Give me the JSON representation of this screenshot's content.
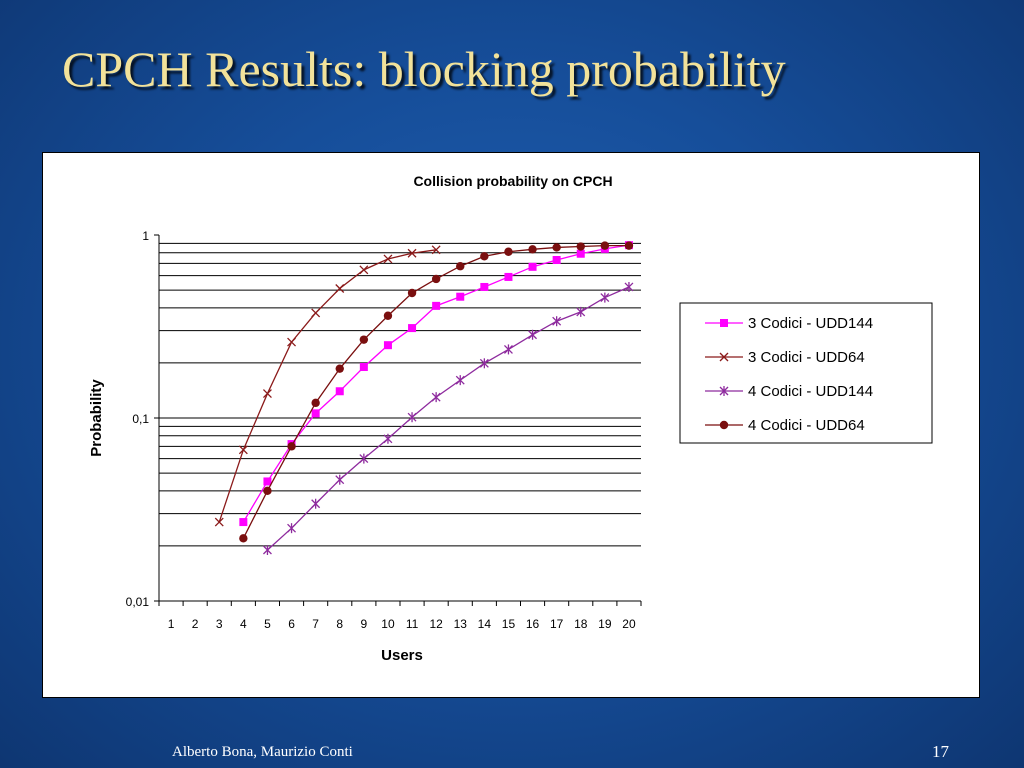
{
  "slide": {
    "title": "CPCH Results: blocking probability",
    "author": "Alberto Bona, Maurizio Conti",
    "page_number": "17"
  },
  "chart_data": {
    "type": "line",
    "title": "Collision probability on CPCH",
    "xlabel": "Users",
    "ylabel": "Probability",
    "yscale": "log",
    "ylim": [
      0.01,
      1
    ],
    "ytick_labels": [
      "0,01",
      "0,1",
      "1"
    ],
    "categories": [
      "1",
      "2",
      "3",
      "4",
      "5",
      "6",
      "7",
      "8",
      "9",
      "10",
      "11",
      "12",
      "13",
      "14",
      "15",
      "16",
      "17",
      "18",
      "19",
      "20"
    ],
    "grid": true,
    "legend_position": "right",
    "series": [
      {
        "name": "3 Codici - UDD144",
        "color": "#ff00ff",
        "marker": "square",
        "values": [
          null,
          null,
          null,
          0.027,
          0.045,
          0.072,
          0.106,
          0.14,
          0.19,
          0.25,
          0.31,
          0.41,
          0.46,
          0.52,
          0.59,
          0.67,
          0.73,
          0.79,
          0.84,
          0.88
        ]
      },
      {
        "name": "3 Codici - UDD64",
        "color": "#8b1a1a",
        "marker": "x",
        "values": [
          null,
          null,
          0.027,
          0.067,
          0.136,
          0.26,
          0.375,
          0.51,
          0.645,
          0.74,
          0.795,
          0.83,
          null,
          null,
          null,
          null,
          null,
          null,
          null,
          null
        ]
      },
      {
        "name": "4 Codici - UDD144",
        "color": "#8e2b9e",
        "marker": "star",
        "values": [
          null,
          null,
          null,
          null,
          0.019,
          0.025,
          0.034,
          0.046,
          0.06,
          0.077,
          0.101,
          0.13,
          0.161,
          0.199,
          0.237,
          0.285,
          0.338,
          0.38,
          0.455,
          0.52
        ]
      },
      {
        "name": "4 Codici - UDD64",
        "color": "#7a0f0f",
        "marker": "circle",
        "values": [
          null,
          null,
          null,
          0.022,
          0.04,
          0.07,
          0.121,
          0.186,
          0.268,
          0.362,
          0.482,
          0.575,
          0.675,
          0.765,
          0.81,
          0.835,
          0.855,
          0.865,
          0.875,
          0.875
        ]
      }
    ]
  }
}
